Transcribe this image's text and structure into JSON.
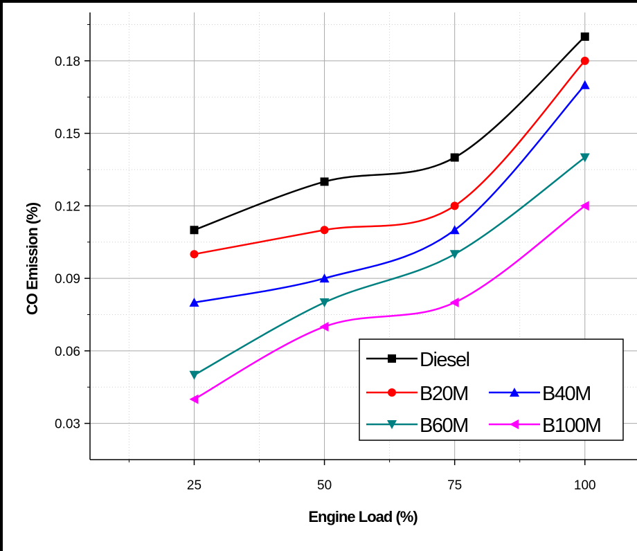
{
  "chart_data": {
    "type": "line",
    "xlabel": "Engine Load (%)",
    "ylabel": "CO Emission (%)",
    "x": [
      25,
      50,
      75,
      100
    ],
    "x_ticks": [
      "25",
      "50",
      "75",
      "100"
    ],
    "y_ticks": [
      "0.03",
      "0.06",
      "0.09",
      "0.12",
      "0.15",
      "0.18"
    ],
    "xlim": [
      5,
      110
    ],
    "ylim": [
      0.015,
      0.2
    ],
    "grid": true,
    "legend_position": "bottom-right",
    "series": [
      {
        "name": "Diesel",
        "values": [
          0.11,
          0.13,
          0.14,
          0.19
        ],
        "color": "#000000",
        "marker": "square"
      },
      {
        "name": "B20M",
        "values": [
          0.1,
          0.11,
          0.12,
          0.18
        ],
        "color": "#ff0000",
        "marker": "circle"
      },
      {
        "name": "B40M",
        "values": [
          0.08,
          0.09,
          0.11,
          0.17
        ],
        "color": "#0000ff",
        "marker": "triangle-up"
      },
      {
        "name": "B60M",
        "values": [
          0.05,
          0.08,
          0.1,
          0.14
        ],
        "color": "#008080",
        "marker": "triangle-down"
      },
      {
        "name": "B100M",
        "values": [
          0.04,
          0.07,
          0.08,
          0.12
        ],
        "color": "#ff00ff",
        "marker": "triangle-left"
      }
    ]
  }
}
